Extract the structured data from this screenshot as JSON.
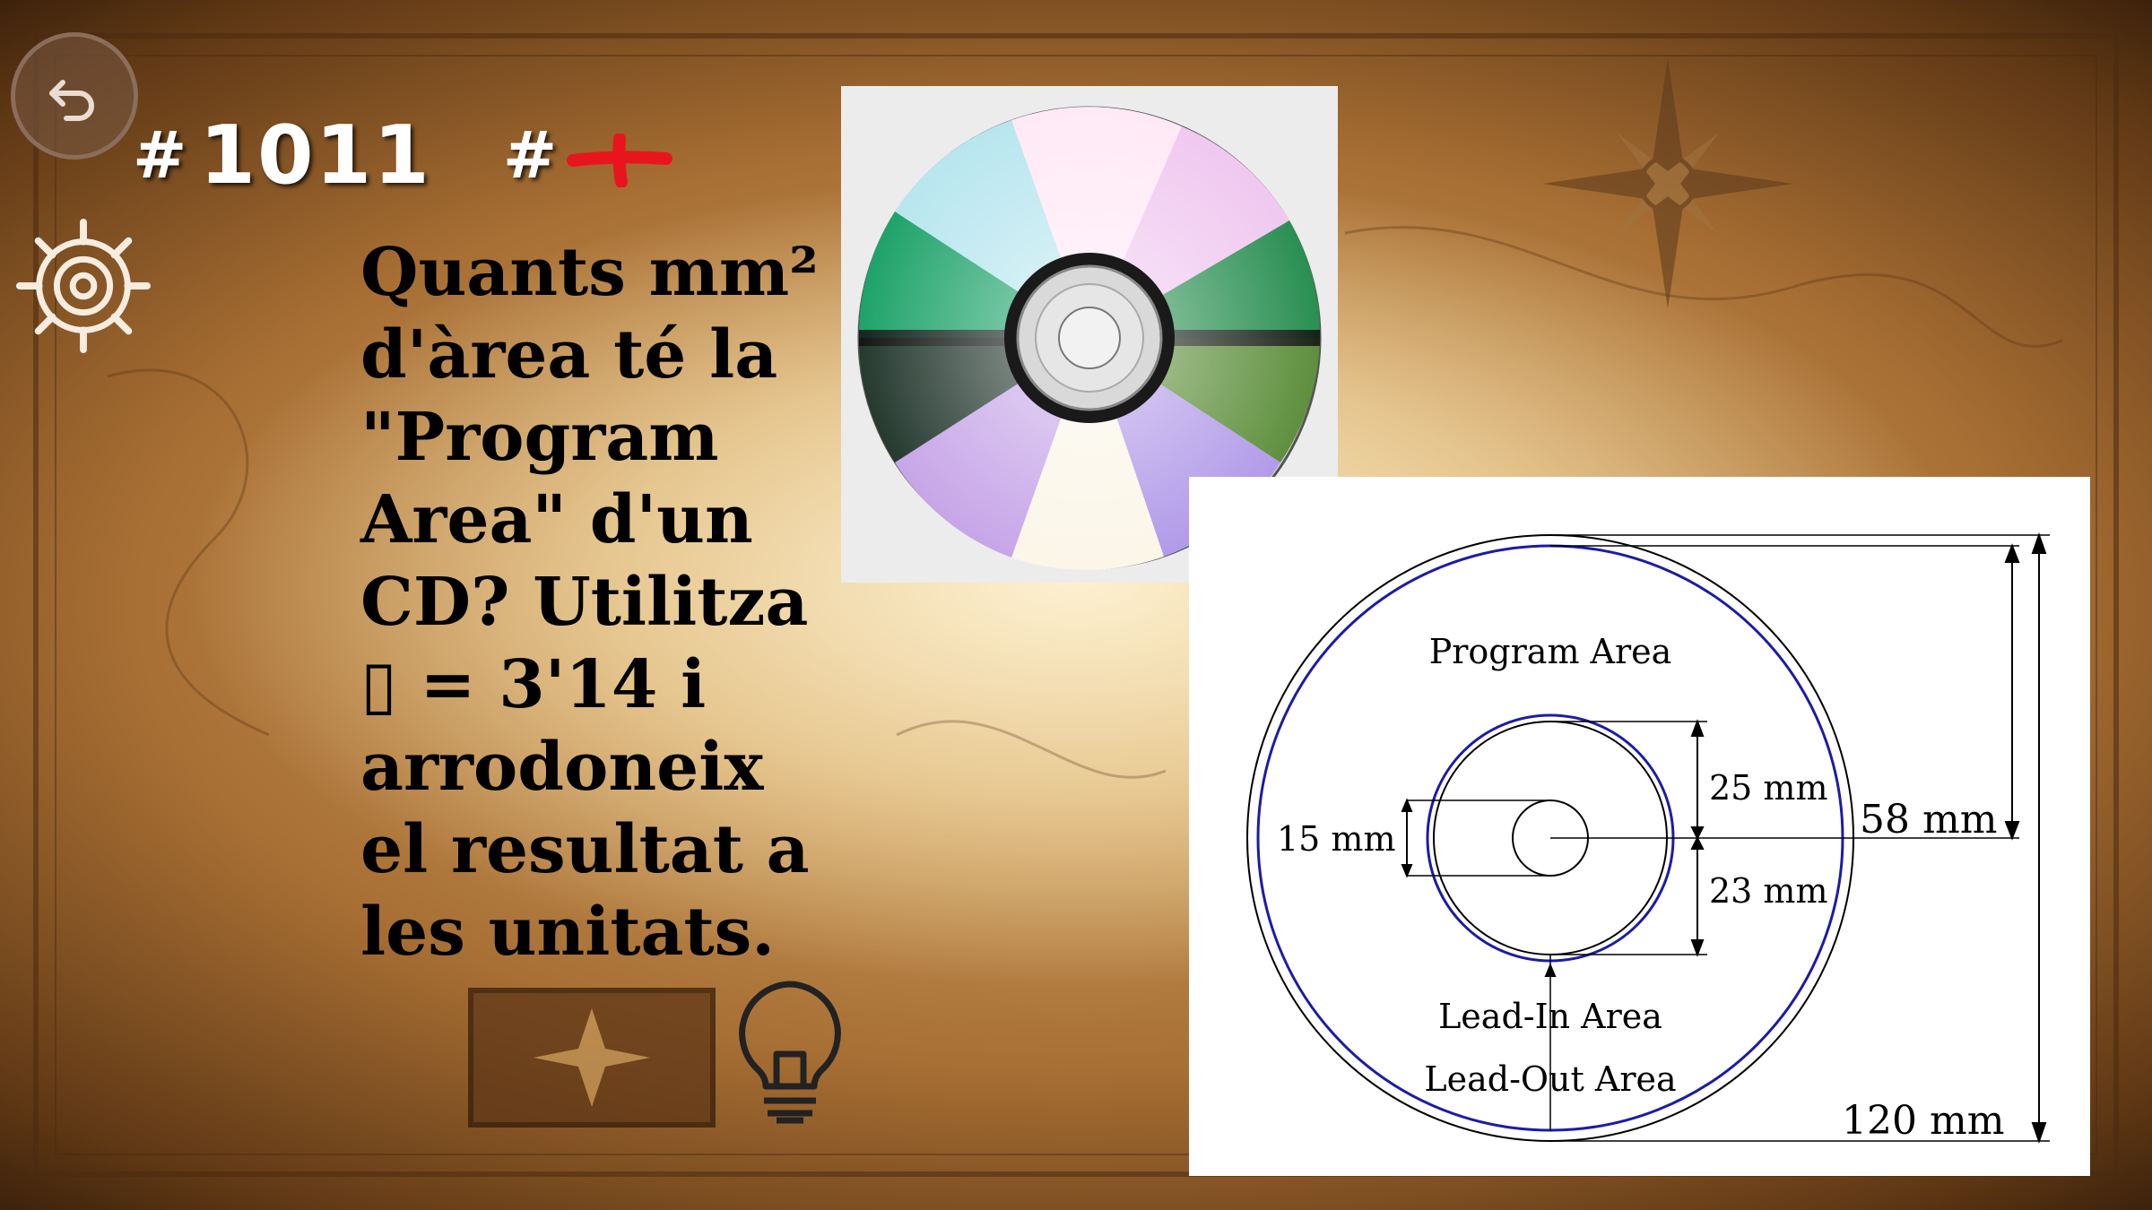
{
  "question": {
    "number": "1011",
    "hash_symbol": "#",
    "text": "Quants mm² d'àrea té la \"Program Area\" d'un CD? Utilitza ▯ = 3'14 i arrodoneix el resultat a les unitats."
  },
  "icons": {
    "back": "back-arrow-icon",
    "helm": "ship-wheel-icon",
    "hint": "lightbulb-icon",
    "marker": "red-cross-icon"
  },
  "colors": {
    "parchment": "#d6ab6a",
    "accent_red": "#e8161c",
    "diagram_blue": "#1b1ba8"
  },
  "diagram": {
    "program_area_label": "Program Area",
    "lead_in_label": "Lead-In Area",
    "lead_out_label": "Lead-Out Area",
    "dim_15": "15 mm",
    "dim_25": "25 mm",
    "dim_23": "23 mm",
    "dim_58": "58 mm",
    "dim_120": "120 mm"
  }
}
